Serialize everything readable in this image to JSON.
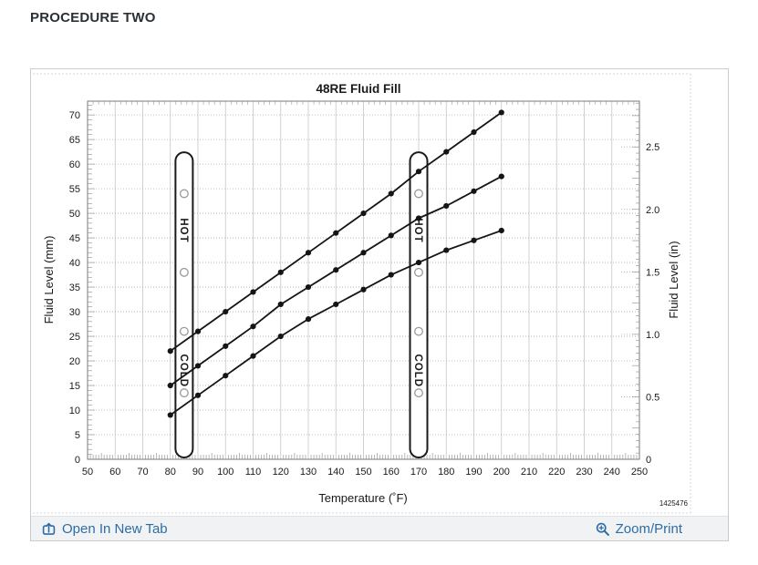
{
  "page": {
    "heading": "PROCEDURE TWO"
  },
  "colors": {
    "link_blue": "#2d6da5",
    "heading_text": "#2b3036",
    "curve": "#151515",
    "grid_vertical": "#c5c5c5",
    "grid_horizontal": "#ababab",
    "plot_border": "#7a7a7a",
    "minor_tick": "#8a8a8a",
    "footer_bg": "#f0f2f4",
    "panel_border": "#c9cdd1",
    "scan_edge": "#d3d7db",
    "hole_ring": "#9a9a9a"
  },
  "chart_data": {
    "type": "line",
    "title": "48RE Fluid Fill",
    "xlabel": "Temperature (˚F)",
    "ylabel_left": "Fluid Level (mm)",
    "ylabel_right": "Fluid Level (in)",
    "xlim": [
      50,
      250
    ],
    "x_tick_step": 10,
    "ylim_mm": [
      0,
      72.8
    ],
    "y_tick_step_mm": 5,
    "y_tick_max_label_mm": 70,
    "right_ticks_in": [
      0,
      0.5,
      1.0,
      1.5,
      2.0,
      2.5
    ],
    "grid": "on",
    "legend": "none",
    "marker": "filled-circle",
    "x": [
      80,
      90,
      100,
      110,
      120,
      130,
      140,
      150,
      160,
      170,
      180,
      190,
      200
    ],
    "series": [
      {
        "name": "upper curve",
        "values": [
          22,
          26,
          30,
          34,
          38,
          42,
          46,
          50,
          54,
          58.5,
          62.5,
          66.5,
          70.5
        ]
      },
      {
        "name": "middle curve",
        "values": [
          15,
          19,
          23,
          27,
          31.5,
          35,
          38.5,
          42,
          45.5,
          49,
          51.5,
          54.5,
          57.5
        ]
      },
      {
        "name": "lower curve",
        "values": [
          9,
          13,
          17,
          21,
          25,
          28.5,
          31.5,
          34.5,
          37.5,
          40,
          42.5,
          44.5,
          46.5
        ]
      }
    ],
    "dipsticks": [
      {
        "center_f": 85,
        "top_mm": 62.4,
        "hot_label": "HOT",
        "cold_label": "COLD",
        "holes_mm": [
          54,
          38,
          26,
          13.5
        ],
        "hot_text_mm": 46.5,
        "cold_text_mm": 18
      },
      {
        "center_f": 170,
        "top_mm": 62.4,
        "hot_label": "HOT",
        "cold_label": "COLD",
        "holes_mm": [
          54,
          38,
          26,
          13.5
        ],
        "hot_text_mm": 46.5,
        "cold_text_mm": 18
      }
    ],
    "figure_number": "1425476"
  },
  "footer": {
    "open_in_new_tab_label": "Open In New Tab",
    "open_icon": "open-in-new-tab-icon",
    "zoom_print_label": "Zoom/Print",
    "zoom_icon": "magnifier-plus-icon"
  }
}
